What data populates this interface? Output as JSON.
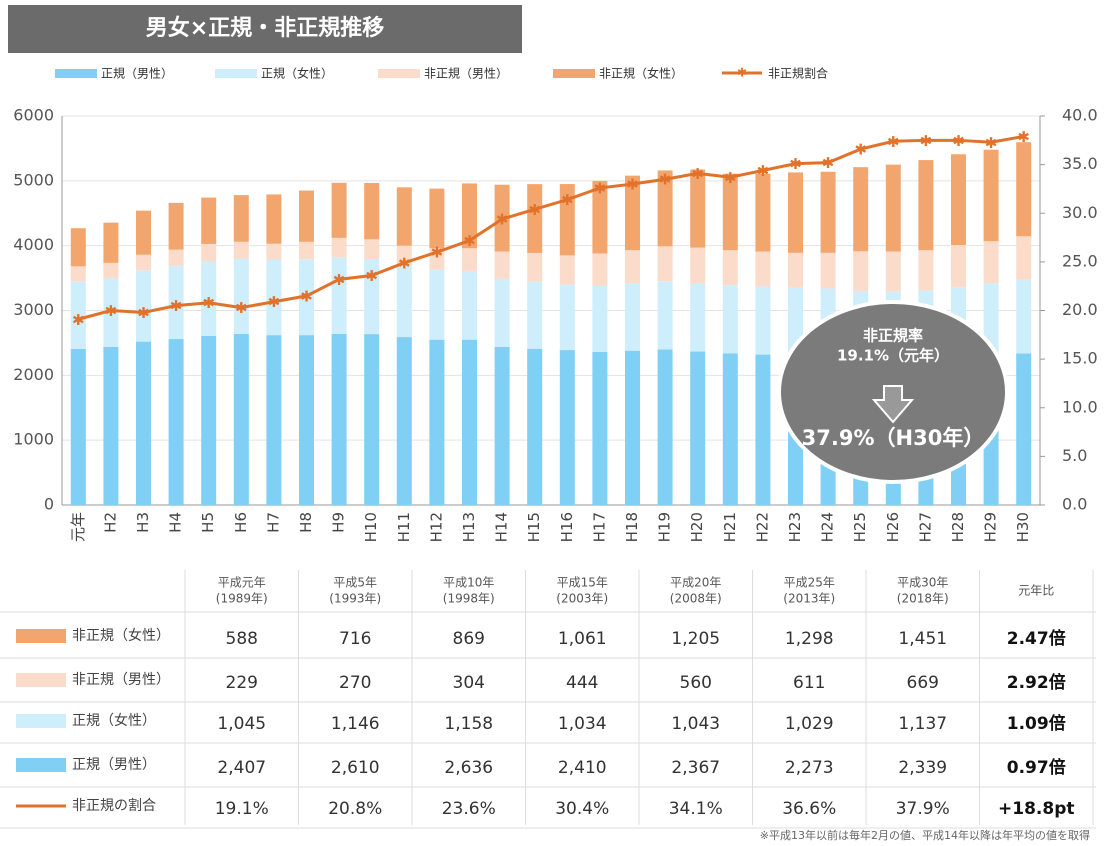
{
  "chart_data": {
    "type": "stacked-bar-line",
    "title": "男女×正規・非正規推移",
    "categories": [
      "元年",
      "H2",
      "H3",
      "H4",
      "H5",
      "H6",
      "H7",
      "H8",
      "H9",
      "H10",
      "H11",
      "H12",
      "H13",
      "H14",
      "H15",
      "H16",
      "H17",
      "H18",
      "H19",
      "H20",
      "H21",
      "H22",
      "H23",
      "H24",
      "H25",
      "H26",
      "H27",
      "H28",
      "H29",
      "H30"
    ],
    "series": [
      {
        "name": "正規（男性）",
        "color": "#80d0f6",
        "values": [
          2407,
          2440,
          2520,
          2560,
          2610,
          2640,
          2620,
          2620,
          2640,
          2636,
          2590,
          2550,
          2550,
          2440,
          2410,
          2390,
          2360,
          2380,
          2400,
          2367,
          2340,
          2320,
          2310,
          2300,
          2273,
          2270,
          2270,
          2280,
          2310,
          2339
        ]
      },
      {
        "name": "正規（女性）",
        "color": "#cfeefb",
        "values": [
          1045,
          1060,
          1100,
          1130,
          1146,
          1160,
          1160,
          1170,
          1180,
          1158,
          1100,
          1080,
          1060,
          1050,
          1034,
          1010,
          1020,
          1040,
          1050,
          1043,
          1050,
          1050,
          1040,
          1040,
          1029,
          1020,
          1040,
          1080,
          1110,
          1137
        ]
      },
      {
        "name": "非正規（男性）",
        "color": "#fbdccb",
        "values": [
          229,
          235,
          240,
          250,
          270,
          260,
          250,
          270,
          300,
          304,
          310,
          330,
          350,
          420,
          444,
          450,
          500,
          510,
          540,
          560,
          540,
          540,
          540,
          550,
          611,
          620,
          620,
          650,
          650,
          669
        ]
      },
      {
        "name": "非正規（女性）",
        "color": "#f2a66e",
        "values": [
          588,
          620,
          680,
          720,
          716,
          720,
          760,
          790,
          850,
          869,
          900,
          920,
          1000,
          1030,
          1061,
          1100,
          1120,
          1150,
          1170,
          1205,
          1180,
          1200,
          1240,
          1250,
          1298,
          1340,
          1390,
          1400,
          1410,
          1451
        ]
      },
      {
        "name": "非正規割合",
        "color": "#e2712a",
        "axis": "y2",
        "values": [
          19.1,
          20.0,
          19.8,
          20.5,
          20.8,
          20.3,
          20.9,
          21.5,
          23.2,
          23.6,
          24.9,
          26.0,
          27.2,
          29.4,
          30.4,
          31.4,
          32.6,
          33.0,
          33.5,
          34.1,
          33.7,
          34.4,
          35.1,
          35.2,
          36.6,
          37.4,
          37.5,
          37.5,
          37.3,
          37.9
        ]
      }
    ],
    "ylim": [
      0,
      6000
    ],
    "yticks": [
      0,
      1000,
      2000,
      3000,
      4000,
      5000,
      6000
    ],
    "y2lim": [
      0,
      40
    ],
    "y2ticks": [
      {
        "value": 0,
        "label": "0.0"
      },
      {
        "value": 5,
        "label": "5.0"
      },
      {
        "value": 10,
        "label": "10.0"
      },
      {
        "value": 15,
        "label": "15.0"
      },
      {
        "value": 20,
        "label": "20.0"
      },
      {
        "value": 25,
        "label": "25.0"
      },
      {
        "value": 30,
        "label": "30.0"
      },
      {
        "value": 35,
        "label": "35.0"
      },
      {
        "value": 40,
        "label": "40.0"
      }
    ],
    "grid": true,
    "annotation": {
      "title": "非正規率",
      "from": "19.1%（元年）",
      "to": "37.9%（H30年）"
    }
  },
  "table": {
    "header": [
      [
        "平成元年",
        "(1989年)"
      ],
      [
        "平成5年",
        "(1993年)"
      ],
      [
        "平成10年",
        "(1998年)"
      ],
      [
        "平成15年",
        "(2003年)"
      ],
      [
        "平成20年",
        "(2008年)"
      ],
      [
        "平成25年",
        "(2013年)"
      ],
      [
        "平成30年",
        "(2018年)"
      ],
      [
        "元年比"
      ]
    ],
    "rows": [
      {
        "label": "非正規（女性）",
        "cells": [
          "588",
          "716",
          "869",
          "1,061",
          "1,205",
          "1,298",
          "1,451",
          "2.47倍"
        ]
      },
      {
        "label": "非正規（男性）",
        "cells": [
          "229",
          "270",
          "304",
          "444",
          "560",
          "611",
          "669",
          "2.92倍"
        ]
      },
      {
        "label": "正規（女性）",
        "cells": [
          "1,045",
          "1,146",
          "1,158",
          "1,034",
          "1,043",
          "1,029",
          "1,137",
          "1.09倍"
        ]
      },
      {
        "label": "正規（男性）",
        "cells": [
          "2,407",
          "2,610",
          "2,636",
          "2,410",
          "2,367",
          "2,273",
          "2,339",
          "0.97倍"
        ]
      },
      {
        "label": "非正規の割合",
        "cells": [
          "19.1%",
          "20.8%",
          "23.6%",
          "30.4%",
          "34.1%",
          "36.6%",
          "37.9%",
          "+18.8pt"
        ]
      }
    ],
    "footnote": "※平成13年以前は毎年2月の値、平成14年以降は年平均の値を取得"
  }
}
